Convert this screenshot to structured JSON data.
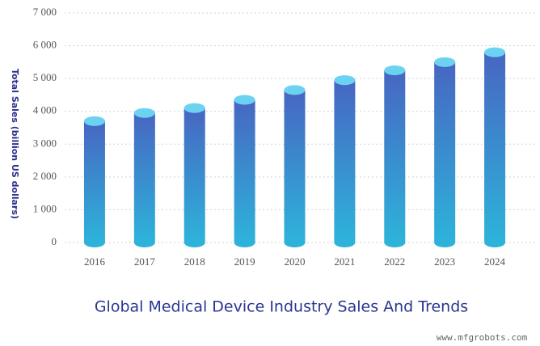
{
  "chart_data": {
    "type": "bar",
    "title": "Global Medical Device Industry Sales And Trends",
    "y_label": "Total Sales (billion US dollars)",
    "watermark": "www.mfgrobots.com",
    "categories": [
      "2016",
      "2017",
      "2018",
      "2019",
      "2020",
      "2021",
      "2022",
      "2023",
      "2024"
    ],
    "values": [
      3700,
      3950,
      4100,
      4350,
      4650,
      4950,
      5250,
      5500,
      5800
    ],
    "color": "#3f7fd0",
    "ylim": [
      0,
      7000
    ],
    "yticks": [
      0,
      {
        "value": 1000,
        "label": "1 000"
      },
      {
        "value": 2000,
        "label": "2 000"
      },
      {
        "value": 3000,
        "label": "3 000"
      },
      {
        "value": 4000,
        "label": "4 000"
      },
      {
        "value": 5000,
        "label": "5 000"
      },
      {
        "value": 6000,
        "label": "6 000"
      },
      {
        "value": 7000,
        "label": "7 000"
      }
    ],
    "grid": true
  }
}
